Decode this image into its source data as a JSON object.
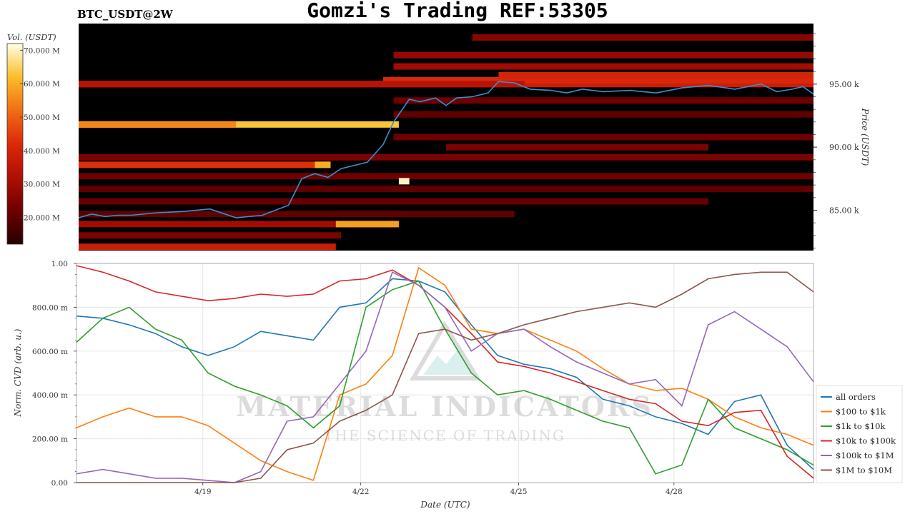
{
  "header": {
    "title": "Gomzi's Trading REF:53305",
    "pair": "BTC_USDT@2W"
  },
  "colors": {
    "background": "#ffffff",
    "heatmap_bg": "#000000",
    "price_line": "#3b8fd1",
    "grid": "#e6e6e6"
  },
  "watermark": {
    "line1": "MATERIAL INDICATORS",
    "line2": "THE SCIENCE OF TRADING"
  },
  "chart_data": [
    {
      "type": "heatmap",
      "colorbar": {
        "label": "Vol. (USDT)",
        "ticks": [
          "70.000 M",
          "60.000 M",
          "50.000 M",
          "40.000 M",
          "30.000 M",
          "20.000 M"
        ],
        "range": [
          12,
          72
        ]
      },
      "ylabel": "Price (USDT)",
      "yticks": [
        "95.00 k",
        "90.00 k",
        "85.00 k"
      ],
      "ylim": [
        81800,
        99800
      ],
      "xlim": [
        0,
        14
      ],
      "price_series": {
        "name": "",
        "x": [
          0,
          0.25,
          0.5,
          0.75,
          1,
          1.5,
          2,
          2.5,
          3,
          3.5,
          4,
          4.25,
          4.5,
          4.75,
          5,
          5.5,
          5.8,
          6,
          6.3,
          6.5,
          6.8,
          7,
          7.2,
          7.5,
          7.8,
          8,
          8.3,
          8.6,
          9,
          9.3,
          9.6,
          10,
          10.5,
          11,
          11.5,
          12,
          12.5,
          13,
          13.3,
          13.6,
          13.8,
          14
        ],
        "y": [
          84400,
          84700,
          84500,
          84600,
          84600,
          84800,
          84900,
          85100,
          84400,
          84600,
          85400,
          87500,
          87900,
          87600,
          88300,
          88800,
          90200,
          92000,
          93800,
          93600,
          93900,
          93300,
          93900,
          94000,
          94300,
          95200,
          95100,
          94600,
          94500,
          94300,
          94600,
          94400,
          94500,
          94300,
          94700,
          94900,
          94600,
          95000,
          94400,
          94600,
          94800,
          94200
        ]
      },
      "bands": [
        {
          "price": 95000,
          "x0": 0,
          "x1": 14,
          "vol": 38
        },
        {
          "price": 95300,
          "x0": 5.8,
          "x1": 14,
          "vol": 42
        },
        {
          "price": 95700,
          "x0": 8,
          "x1": 14,
          "vol": 40
        },
        {
          "price": 96400,
          "x0": 6,
          "x1": 14,
          "vol": 30
        },
        {
          "price": 97300,
          "x0": 6,
          "x1": 14,
          "vol": 28
        },
        {
          "price": 98700,
          "x0": 7.5,
          "x1": 14,
          "vol": 26
        },
        {
          "price": 95000,
          "x0": 0,
          "x1": 8.5,
          "vol": 34
        },
        {
          "price": 91800,
          "x0": 0,
          "x1": 6.1,
          "vol": 63
        },
        {
          "price": 91800,
          "x0": 0,
          "x1": 3,
          "vol": 55
        },
        {
          "price": 89200,
          "x0": 0,
          "x1": 14,
          "vol": 24
        },
        {
          "price": 88600,
          "x0": 0,
          "x1": 4.8,
          "vol": 43
        },
        {
          "price": 88600,
          "x0": 4.5,
          "x1": 4.8,
          "vol": 60
        },
        {
          "price": 87700,
          "x0": 0,
          "x1": 14,
          "vol": 22
        },
        {
          "price": 86700,
          "x0": 0,
          "x1": 14,
          "vol": 20
        },
        {
          "price": 85700,
          "x0": 0,
          "x1": 12,
          "vol": 21
        },
        {
          "price": 84700,
          "x0": 0,
          "x1": 8.3,
          "vol": 20
        },
        {
          "price": 83900,
          "x0": 0,
          "x1": 6.1,
          "vol": 30
        },
        {
          "price": 83900,
          "x0": 4.9,
          "x1": 6.1,
          "vol": 58
        },
        {
          "price": 83000,
          "x0": 0,
          "x1": 5,
          "vol": 24
        },
        {
          "price": 82100,
          "x0": 0,
          "x1": 4.9,
          "vol": 38
        },
        {
          "price": 93700,
          "x0": 6,
          "x1": 14,
          "vol": 22
        },
        {
          "price": 92600,
          "x0": 6,
          "x1": 14,
          "vol": 20
        },
        {
          "price": 90800,
          "x0": 6,
          "x1": 14,
          "vol": 22
        },
        {
          "price": 90000,
          "x0": 7,
          "x1": 12,
          "vol": 24
        },
        {
          "price": 87300,
          "x0": 6.1,
          "x1": 6.3,
          "vol": 70
        }
      ]
    },
    {
      "type": "line",
      "xlabel": "Date (UTC)",
      "ylabel": "Norm. CVD (arb. u.)",
      "xticks": [
        {
          "label": "4/19",
          "x": 2.4
        },
        {
          "label": "4/22",
          "x": 5.4
        },
        {
          "label": "4/25",
          "x": 8.4
        },
        {
          "label": "4/28",
          "x": 11.35
        }
      ],
      "yticks": [
        "0.00",
        "200.00 m",
        "400.00 m",
        "600.00 m",
        "800.00 m",
        "1.00"
      ],
      "ylim": [
        0,
        1
      ],
      "xlim": [
        0,
        14
      ],
      "grid": true,
      "legend_position": "right",
      "x": [
        0,
        0.5,
        1,
        1.5,
        2,
        2.5,
        3,
        3.5,
        4,
        4.5,
        5,
        5.5,
        6,
        6.5,
        7,
        7.5,
        8,
        8.5,
        9,
        9.5,
        10,
        10.5,
        11,
        11.5,
        12,
        12.5,
        13,
        13.5,
        14
      ],
      "series": [
        {
          "name": "all orders",
          "color": "#1f77b4",
          "values": [
            0.76,
            0.75,
            0.72,
            0.68,
            0.62,
            0.58,
            0.62,
            0.69,
            0.67,
            0.65,
            0.8,
            0.82,
            0.93,
            0.92,
            0.87,
            0.72,
            0.58,
            0.54,
            0.52,
            0.48,
            0.38,
            0.35,
            0.3,
            0.27,
            0.22,
            0.37,
            0.4,
            0.17,
            0.06
          ]
        },
        {
          "name": "$100 to $1k",
          "color": "#ff7f0e",
          "values": [
            0.25,
            0.3,
            0.34,
            0.3,
            0.3,
            0.26,
            0.18,
            0.1,
            0.05,
            0.01,
            0.4,
            0.45,
            0.58,
            0.98,
            0.9,
            0.7,
            0.68,
            0.7,
            0.65,
            0.6,
            0.52,
            0.45,
            0.42,
            0.43,
            0.38,
            0.3,
            0.25,
            0.22,
            0.17
          ]
        },
        {
          "name": "$1k to $10k",
          "color": "#2ca02c",
          "values": [
            0.64,
            0.75,
            0.8,
            0.7,
            0.65,
            0.5,
            0.44,
            0.4,
            0.35,
            0.25,
            0.35,
            0.8,
            0.88,
            0.92,
            0.7,
            0.5,
            0.4,
            0.42,
            0.38,
            0.33,
            0.28,
            0.25,
            0.04,
            0.08,
            0.38,
            0.25,
            0.2,
            0.15,
            0.08
          ]
        },
        {
          "name": "$10k to $100k",
          "color": "#d62728",
          "values": [
            0.99,
            0.96,
            0.92,
            0.87,
            0.85,
            0.83,
            0.84,
            0.86,
            0.85,
            0.86,
            0.92,
            0.93,
            0.97,
            0.9,
            0.8,
            0.68,
            0.55,
            0.53,
            0.5,
            0.46,
            0.42,
            0.38,
            0.36,
            0.28,
            0.26,
            0.32,
            0.33,
            0.12,
            0.02
          ]
        },
        {
          "name": "$100k to $1M",
          "color": "#9467bd",
          "values": [
            0.04,
            0.06,
            0.04,
            0.02,
            0.02,
            0.01,
            0.0,
            0.05,
            0.28,
            0.3,
            0.45,
            0.6,
            0.96,
            0.9,
            0.8,
            0.6,
            0.68,
            0.7,
            0.62,
            0.55,
            0.5,
            0.45,
            0.47,
            0.35,
            0.72,
            0.78,
            0.7,
            0.62,
            0.46
          ]
        },
        {
          "name": "$1M to $10M",
          "color": "#8c564b",
          "values": [
            0.0,
            0.0,
            0.0,
            0.0,
            0.0,
            0.0,
            0.0,
            0.02,
            0.15,
            0.18,
            0.28,
            0.33,
            0.4,
            0.68,
            0.7,
            0.65,
            0.68,
            0.72,
            0.75,
            0.78,
            0.8,
            0.82,
            0.8,
            0.86,
            0.93,
            0.95,
            0.96,
            0.96,
            0.87
          ]
        }
      ]
    }
  ]
}
